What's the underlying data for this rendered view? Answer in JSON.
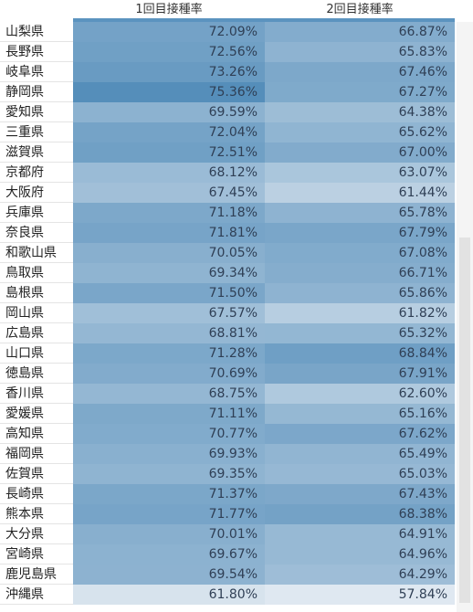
{
  "headers": {
    "dose1": "1回目接種率",
    "dose2": "2回目接種率"
  },
  "colors": {
    "dark": "#4f8ab8",
    "light": "#e8eef4"
  },
  "rows": [
    {
      "pref": "山梨県",
      "dose1": "72.09%",
      "dose2": "66.87%"
    },
    {
      "pref": "長野県",
      "dose1": "72.56%",
      "dose2": "65.83%"
    },
    {
      "pref": "岐阜県",
      "dose1": "73.26%",
      "dose2": "67.46%"
    },
    {
      "pref": "静岡県",
      "dose1": "75.36%",
      "dose2": "67.27%"
    },
    {
      "pref": "愛知県",
      "dose1": "69.59%",
      "dose2": "64.38%"
    },
    {
      "pref": "三重県",
      "dose1": "72.04%",
      "dose2": "65.62%"
    },
    {
      "pref": "滋賀県",
      "dose1": "72.51%",
      "dose2": "67.00%"
    },
    {
      "pref": "京都府",
      "dose1": "68.12%",
      "dose2": "63.07%"
    },
    {
      "pref": "大阪府",
      "dose1": "67.45%",
      "dose2": "61.44%"
    },
    {
      "pref": "兵庫県",
      "dose1": "71.18%",
      "dose2": "65.78%"
    },
    {
      "pref": "奈良県",
      "dose1": "71.81%",
      "dose2": "67.79%"
    },
    {
      "pref": "和歌山県",
      "dose1": "70.05%",
      "dose2": "67.08%"
    },
    {
      "pref": "鳥取県",
      "dose1": "69.34%",
      "dose2": "66.71%"
    },
    {
      "pref": "島根県",
      "dose1": "71.50%",
      "dose2": "65.86%"
    },
    {
      "pref": "岡山県",
      "dose1": "67.57%",
      "dose2": "61.82%"
    },
    {
      "pref": "広島県",
      "dose1": "68.81%",
      "dose2": "65.32%"
    },
    {
      "pref": "山口県",
      "dose1": "71.28%",
      "dose2": "68.84%"
    },
    {
      "pref": "徳島県",
      "dose1": "70.69%",
      "dose2": "67.91%"
    },
    {
      "pref": "香川県",
      "dose1": "68.75%",
      "dose2": "62.60%"
    },
    {
      "pref": "愛媛県",
      "dose1": "71.11%",
      "dose2": "65.16%"
    },
    {
      "pref": "高知県",
      "dose1": "70.77%",
      "dose2": "67.62%"
    },
    {
      "pref": "福岡県",
      "dose1": "69.93%",
      "dose2": "65.49%"
    },
    {
      "pref": "佐賀県",
      "dose1": "69.35%",
      "dose2": "65.03%"
    },
    {
      "pref": "長崎県",
      "dose1": "71.37%",
      "dose2": "67.43%"
    },
    {
      "pref": "熊本県",
      "dose1": "71.77%",
      "dose2": "68.38%"
    },
    {
      "pref": "大分県",
      "dose1": "70.01%",
      "dose2": "64.91%"
    },
    {
      "pref": "宮崎県",
      "dose1": "69.67%",
      "dose2": "64.96%"
    },
    {
      "pref": "鹿児島県",
      "dose1": "69.54%",
      "dose2": "64.29%"
    },
    {
      "pref": "沖縄県",
      "dose1": "61.80%",
      "dose2": "57.84%"
    }
  ]
}
